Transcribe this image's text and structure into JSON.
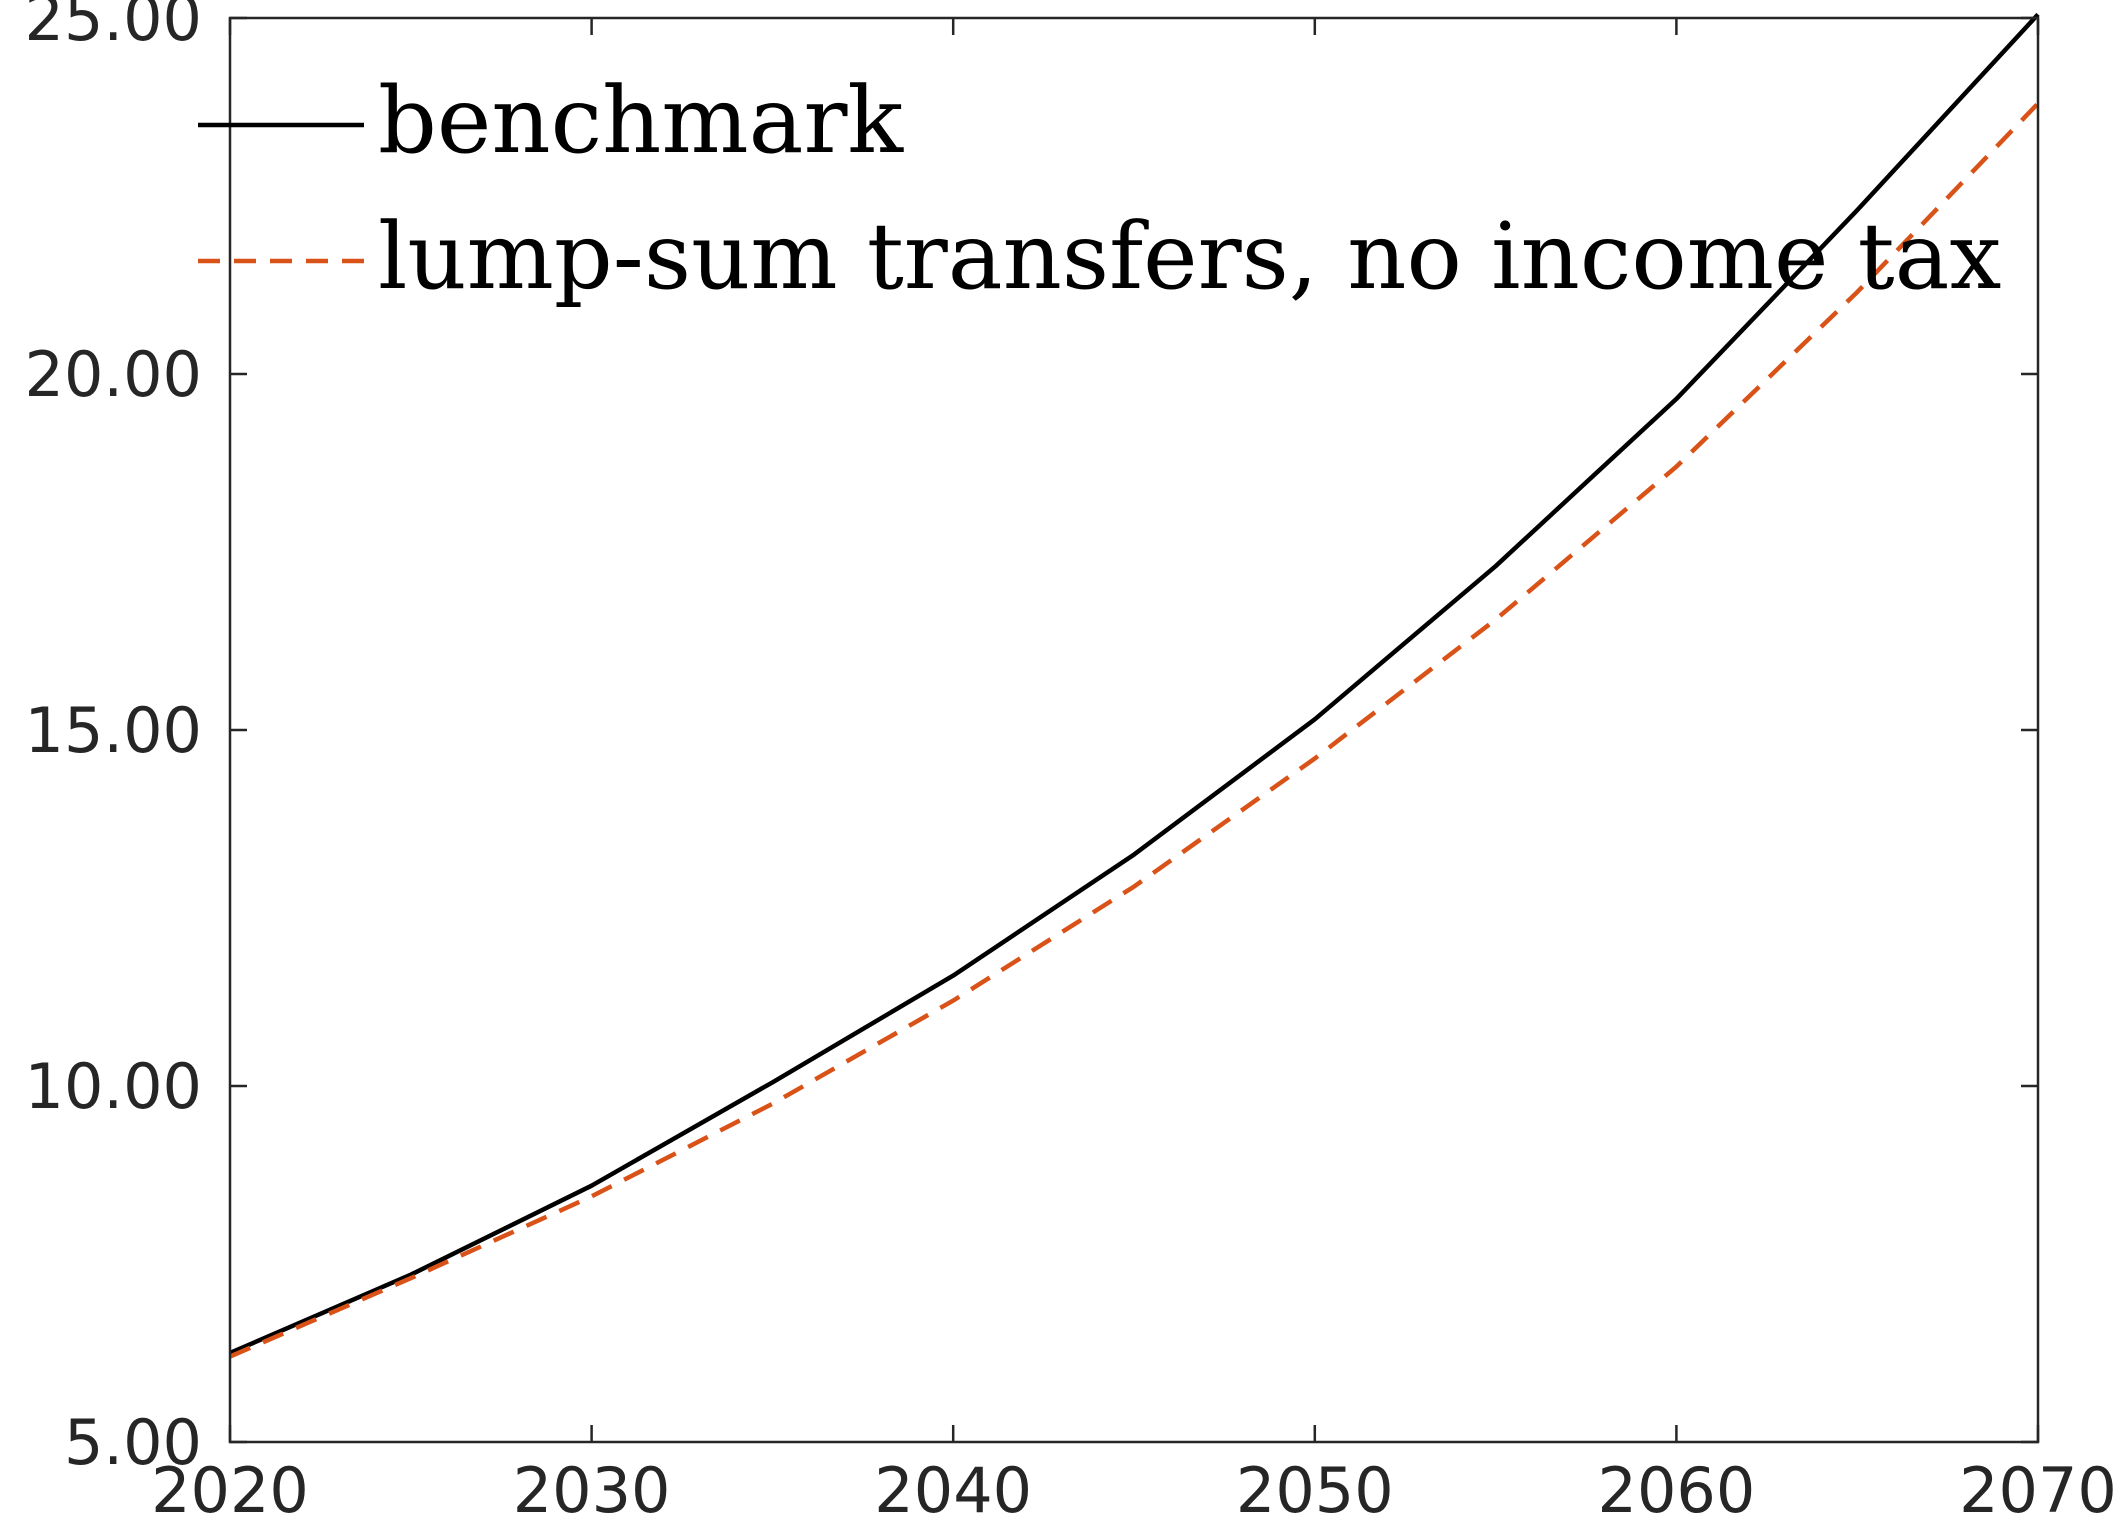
{
  "chart_data": {
    "type": "line",
    "title": "",
    "xlabel": "",
    "ylabel": "",
    "xlim": [
      2020,
      2070
    ],
    "ylim": [
      5,
      25
    ],
    "xticks": [
      2020,
      2030,
      2040,
      2050,
      2060,
      2070
    ],
    "xtick_labels": [
      "2020",
      "2030",
      "2040",
      "2050",
      "2060",
      "2070"
    ],
    "yticks": [
      5,
      10,
      15,
      20,
      25
    ],
    "ytick_labels": [
      "5.00",
      "10.00",
      "15.00",
      "20.00",
      "25.00"
    ],
    "grid": false,
    "legend_position": "top-left",
    "x": [
      2020,
      2025,
      2030,
      2035,
      2040,
      2045,
      2050,
      2055,
      2060,
      2065,
      2070
    ],
    "series": [
      {
        "name": "benchmark",
        "color": "#000000",
        "line_style": "solid",
        "values": [
          6.25,
          7.35,
          8.6,
          10.05,
          11.55,
          13.25,
          15.15,
          17.3,
          19.65,
          22.3,
          25.05
        ]
      },
      {
        "name": "lump-sum transfers, no income tax",
        "color": "#D95319",
        "line_style": "dashed",
        "values": [
          6.2,
          7.3,
          8.45,
          9.75,
          11.2,
          12.8,
          14.6,
          16.55,
          18.7,
          21.15,
          23.8
        ]
      }
    ]
  }
}
